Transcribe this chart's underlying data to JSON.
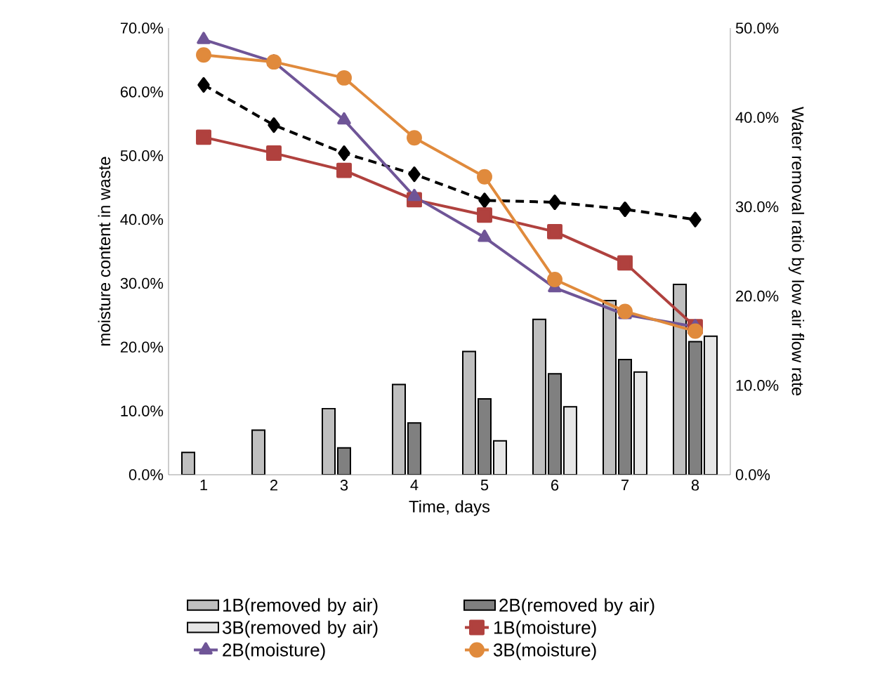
{
  "chart_data": {
    "type": "line",
    "xlabel": "Time, days",
    "ylabel": "moisture content in waste",
    "y2label": "Water removal ratio by low air flow rate",
    "categories": [
      "1",
      "2",
      "3",
      "4",
      "5",
      "6",
      "7",
      "8"
    ],
    "ylim": [
      0,
      70
    ],
    "yticks": [
      {
        "value": 0,
        "label": "0.0%"
      },
      {
        "value": 10,
        "label": "10.0%"
      },
      {
        "value": 20,
        "label": "20.0%"
      },
      {
        "value": 30,
        "label": "30.0%"
      },
      {
        "value": 40,
        "label": "40.0%"
      },
      {
        "value": 50,
        "label": "50.0%"
      },
      {
        "value": 60,
        "label": "60.0%"
      },
      {
        "value": 70,
        "label": "70.0%"
      }
    ],
    "y2lim": [
      0,
      50
    ],
    "y2ticks": [
      {
        "value": 0,
        "label": "0.0%"
      },
      {
        "value": 10,
        "label": "10.0%"
      },
      {
        "value": 20,
        "label": "20.0%"
      },
      {
        "value": 30,
        "label": "30.0%"
      },
      {
        "value": 40,
        "label": "40.0%"
      },
      {
        "value": 50,
        "label": "50.0%"
      }
    ],
    "legend": "bottom",
    "series": [
      {
        "name": "1B(removed by air)",
        "type": "bar",
        "axis": "y2",
        "color": "#bfbfbf",
        "values": [
          2.5,
          5.0,
          7.4,
          10.1,
          13.8,
          17.4,
          19.5,
          21.3
        ]
      },
      {
        "name": "2B(removed by air)",
        "type": "bar",
        "axis": "y2",
        "color": "#808080",
        "values": [
          null,
          null,
          3.0,
          5.8,
          8.5,
          11.3,
          12.9,
          14.9
        ]
      },
      {
        "name": "3B(removed by air)",
        "type": "bar",
        "axis": "y2",
        "color": "#e6e6e6",
        "values": [
          null,
          null,
          null,
          null,
          3.8,
          7.6,
          11.5,
          15.5
        ]
      },
      {
        "color": "#000000",
        "marker": "diamond",
        "line_style": "dashed",
        "values": [
          61.1,
          54.8,
          50.4,
          47.1,
          43.0,
          42.7,
          41.6,
          40.0
        ]
      },
      {
        "name": "1B(moisture)",
        "color": "#b0413e",
        "marker": "square",
        "line_style": "solid",
        "values": [
          52.9,
          50.4,
          47.7,
          43.1,
          40.7,
          38.1,
          33.2,
          23.2
        ]
      },
      {
        "name": "2B(moisture)",
        "color": "#6f5597",
        "marker": "triangle",
        "line_style": "solid",
        "values": [
          68.2,
          64.7,
          55.6,
          43.6,
          37.2,
          29.3,
          25.1,
          23.2
        ]
      },
      {
        "name": "3B(moisture)",
        "color": "#e08a3c",
        "marker": "circle",
        "line_style": "solid",
        "values": [
          65.8,
          64.7,
          62.2,
          52.8,
          46.7,
          30.6,
          25.6,
          22.5
        ]
      }
    ]
  }
}
